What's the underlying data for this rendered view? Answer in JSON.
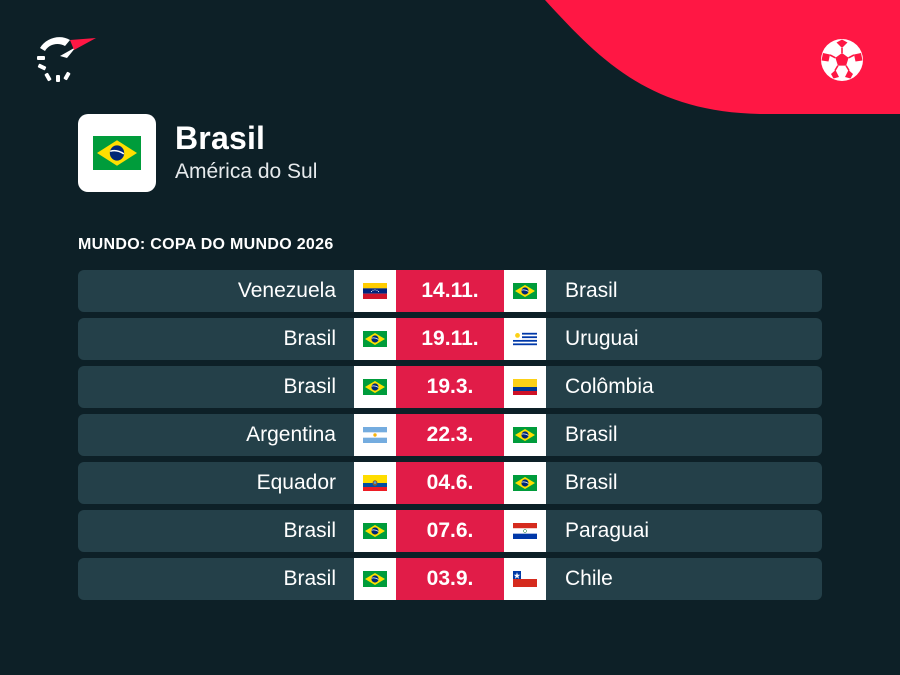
{
  "colors": {
    "background": "#0d2027",
    "row": "#244049",
    "accent": "#e11c48",
    "brand_red": "#ff1744"
  },
  "header": {
    "logo_icon": "flashscore-logo-icon",
    "sport_icon": "football-ball-icon"
  },
  "team": {
    "name": "Brasil",
    "region": "América do Sul",
    "flag": "brazil"
  },
  "competition": "MUNDO: COPA DO MUNDO 2026",
  "matches": [
    {
      "home": "Venezuela",
      "home_flag": "venezuela",
      "date": "14.11.",
      "away": "Brasil",
      "away_flag": "brazil"
    },
    {
      "home": "Brasil",
      "home_flag": "brazil",
      "date": "19.11.",
      "away": "Uruguai",
      "away_flag": "uruguay"
    },
    {
      "home": "Brasil",
      "home_flag": "brazil",
      "date": "19.3.",
      "away": "Colômbia",
      "away_flag": "colombia"
    },
    {
      "home": "Argentina",
      "home_flag": "argentina",
      "date": "22.3.",
      "away": "Brasil",
      "away_flag": "brazil"
    },
    {
      "home": "Equador",
      "home_flag": "ecuador",
      "date": "04.6.",
      "away": "Brasil",
      "away_flag": "brazil"
    },
    {
      "home": "Brasil",
      "home_flag": "brazil",
      "date": "07.6.",
      "away": "Paraguai",
      "away_flag": "paraguay"
    },
    {
      "home": "Brasil",
      "home_flag": "brazil",
      "date": "03.9.",
      "away": "Chile",
      "away_flag": "chile"
    }
  ]
}
